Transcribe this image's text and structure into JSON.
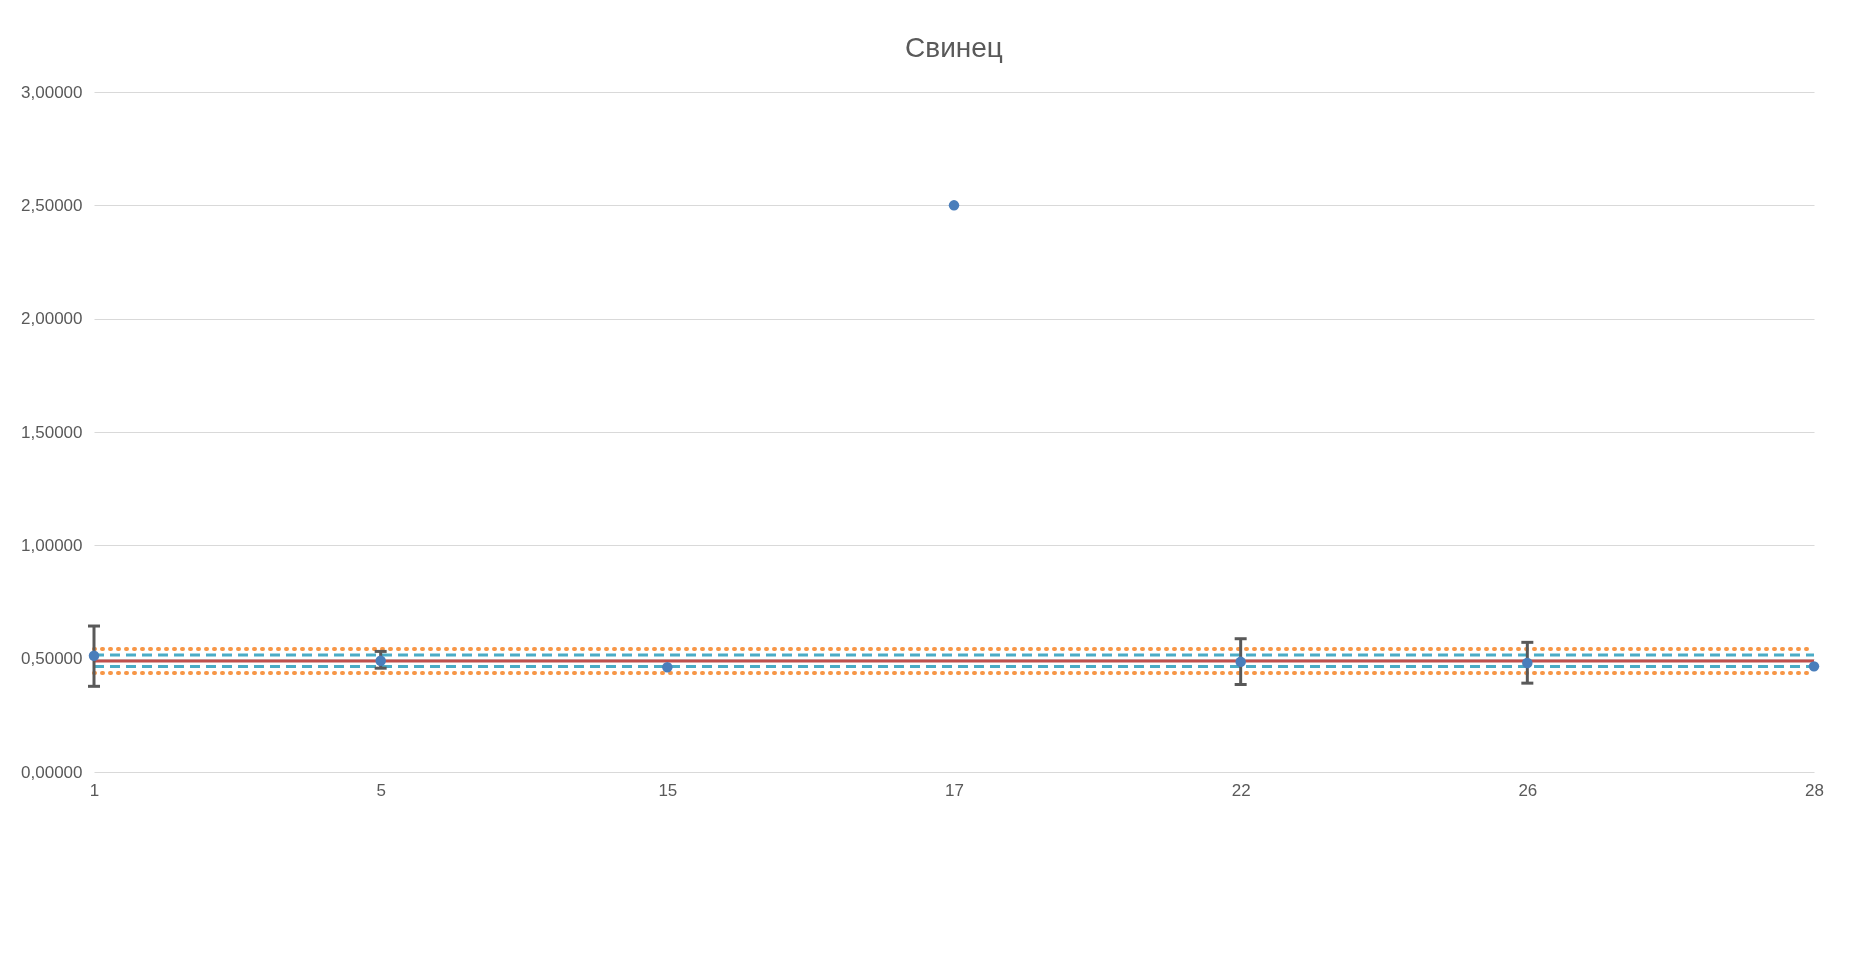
{
  "chart_data": {
    "type": "scatter",
    "title": "Свинец",
    "categories": [
      "1",
      "5",
      "15",
      "17",
      "22",
      "26",
      "28"
    ],
    "series": [
      {
        "color": "#4a7ebb",
        "values": [
          0.513,
          0.491,
          0.462,
          2.5,
          0.486,
          0.481,
          0.466
        ],
        "errors": [
          [
            0.378,
            0.644
          ],
          [
            0.458,
            0.532
          ],
          null,
          null,
          [
            0.386,
            0.588
          ],
          [
            0.392,
            0.572
          ],
          null
        ]
      }
    ],
    "ylim": [
      0,
      3
    ],
    "yticks": [
      {
        "value": 0,
        "label": "0,00000"
      },
      {
        "value": 0.5,
        "label": "0,50000"
      },
      {
        "value": 1,
        "label": "1,00000"
      },
      {
        "value": 1.5,
        "label": "1,50000"
      },
      {
        "value": 2,
        "label": "2,00000"
      },
      {
        "value": 2.5,
        "label": "2,50000"
      },
      {
        "value": 3,
        "label": "3,00000"
      }
    ],
    "ref_lines": [
      {
        "axis": "y",
        "value": 0.49,
        "color": "#c0504d",
        "line_style": "solid"
      },
      {
        "axis": "y",
        "value": 0.516,
        "color": "#4bacc6",
        "line_style": "dashed"
      },
      {
        "axis": "y",
        "value": 0.465,
        "color": "#4bacc6",
        "line_style": "dashed"
      },
      {
        "axis": "y",
        "value": 0.543,
        "color": "#f79646",
        "line_style": "dotted"
      },
      {
        "axis": "y",
        "value": 0.437,
        "color": "#f79646",
        "line_style": "dotted"
      }
    ],
    "grid": "y",
    "legend": false,
    "marker": "circle"
  }
}
